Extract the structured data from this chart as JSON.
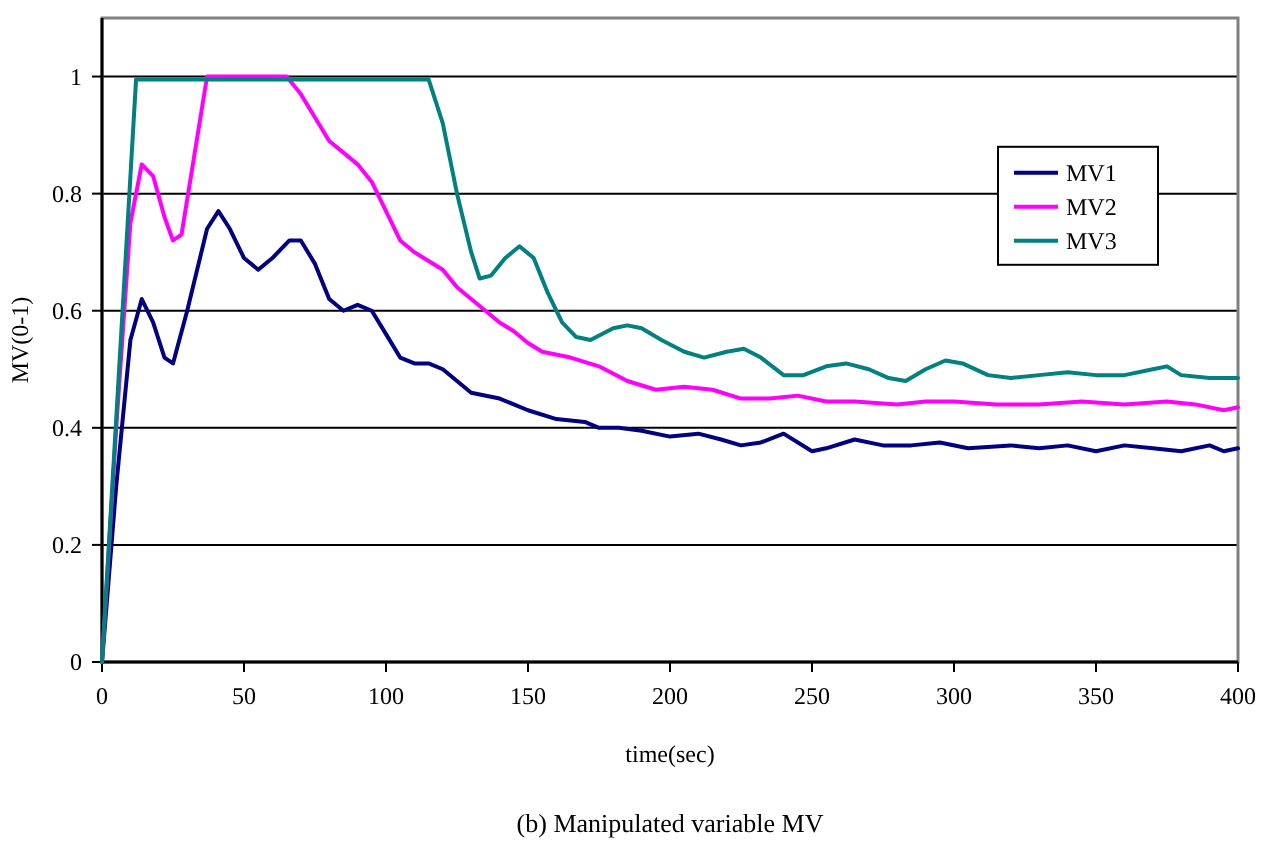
{
  "chart_data": {
    "type": "line",
    "title": "(b) Manipulated variable MV",
    "xlabel": "time(sec)",
    "ylabel": "MV(0-1)",
    "xlim": [
      0,
      400
    ],
    "xticks": [
      0,
      50,
      100,
      150,
      200,
      250,
      300,
      350,
      400
    ],
    "ylim": [
      0,
      1.1
    ],
    "yticks": [
      0,
      0.2,
      0.4,
      0.6,
      0.8,
      1
    ],
    "grid": "y",
    "legend": "right",
    "marker": "none",
    "line_style": "solid",
    "series": [
      {
        "name": "MV1",
        "color": "#000080",
        "x": [
          0,
          5,
          10,
          14,
          18,
          22,
          25,
          30,
          37,
          41,
          45,
          50,
          55,
          60,
          66,
          70,
          75,
          80,
          85,
          90,
          95,
          100,
          105,
          110,
          115,
          120,
          125,
          130,
          140,
          150,
          160,
          170,
          175,
          182,
          190,
          200,
          210,
          218,
          225,
          232,
          240,
          250,
          255,
          265,
          275,
          285,
          295,
          305,
          320,
          330,
          340,
          350,
          360,
          370,
          380,
          390,
          395,
          400
        ],
        "values": [
          0,
          0.3,
          0.55,
          0.62,
          0.58,
          0.52,
          0.51,
          0.6,
          0.74,
          0.77,
          0.74,
          0.69,
          0.67,
          0.69,
          0.72,
          0.72,
          0.68,
          0.62,
          0.6,
          0.61,
          0.6,
          0.56,
          0.52,
          0.51,
          0.51,
          0.5,
          0.48,
          0.46,
          0.45,
          0.43,
          0.415,
          0.41,
          0.4,
          0.4,
          0.395,
          0.385,
          0.39,
          0.38,
          0.37,
          0.375,
          0.39,
          0.36,
          0.365,
          0.38,
          0.37,
          0.37,
          0.375,
          0.365,
          0.37,
          0.365,
          0.37,
          0.36,
          0.37,
          0.365,
          0.36,
          0.37,
          0.36,
          0.365
        ]
      },
      {
        "name": "MV2",
        "color": "#ff00ff",
        "x": [
          0,
          5,
          10,
          14,
          18,
          22,
          25,
          28,
          32,
          37,
          65,
          70,
          75,
          80,
          85,
          90,
          95,
          100,
          105,
          110,
          115,
          120,
          125,
          130,
          135,
          140,
          145,
          150,
          155,
          165,
          175,
          185,
          195,
          205,
          215,
          225,
          235,
          245,
          255,
          265,
          280,
          290,
          300,
          315,
          330,
          345,
          360,
          375,
          385,
          395,
          400
        ],
        "values": [
          0,
          0.4,
          0.75,
          0.85,
          0.83,
          0.76,
          0.72,
          0.73,
          0.85,
          1,
          1,
          0.97,
          0.93,
          0.89,
          0.87,
          0.85,
          0.82,
          0.77,
          0.72,
          0.7,
          0.685,
          0.67,
          0.64,
          0.62,
          0.6,
          0.58,
          0.565,
          0.545,
          0.53,
          0.52,
          0.505,
          0.48,
          0.465,
          0.47,
          0.465,
          0.45,
          0.45,
          0.455,
          0.445,
          0.445,
          0.44,
          0.445,
          0.445,
          0.44,
          0.44,
          0.445,
          0.44,
          0.445,
          0.44,
          0.43,
          0.435
        ]
      },
      {
        "name": "MV3",
        "color": "#008080",
        "x": [
          0,
          12,
          115,
          120,
          125,
          130,
          133,
          137,
          142,
          147,
          152,
          157,
          162,
          167,
          172,
          180,
          185,
          190,
          197,
          205,
          212,
          220,
          226,
          232,
          240,
          247,
          255,
          262,
          270,
          277,
          283,
          290,
          297,
          303,
          312,
          320,
          330,
          340,
          350,
          360,
          370,
          375,
          380,
          390,
          400
        ],
        "values": [
          0,
          0.995,
          0.995,
          0.92,
          0.8,
          0.7,
          0.655,
          0.66,
          0.69,
          0.71,
          0.69,
          0.63,
          0.58,
          0.555,
          0.55,
          0.57,
          0.575,
          0.57,
          0.55,
          0.53,
          0.52,
          0.53,
          0.535,
          0.52,
          0.49,
          0.49,
          0.505,
          0.51,
          0.5,
          0.485,
          0.48,
          0.5,
          0.515,
          0.51,
          0.49,
          0.485,
          0.49,
          0.495,
          0.49,
          0.49,
          0.5,
          0.505,
          0.49,
          0.485,
          0.485
        ]
      }
    ]
  }
}
